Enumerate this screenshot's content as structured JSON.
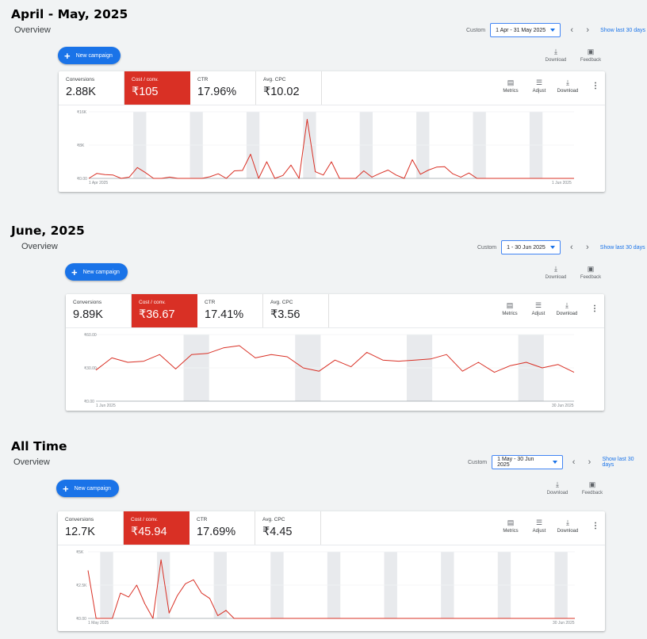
{
  "panels": [
    {
      "title": "April - May, 2025",
      "overview_label": "Overview",
      "range_custom_label": "Custom",
      "range_value": "1 Apr - 31 May 2025",
      "show_last_label": "Show last 30 days",
      "new_campaign_label": "New campaign",
      "download_label": "Download",
      "feedback_label": "Feedback",
      "metrics": [
        {
          "label": "Conversions",
          "value": "2.88K"
        },
        {
          "label": "Cost / conv.",
          "value": "₹105"
        },
        {
          "label": "CTR",
          "value": "17.96%"
        },
        {
          "label": "Avg. CPC",
          "value": "₹10.02"
        }
      ],
      "tools": {
        "metrics": "Metrics",
        "adjust": "Adjust",
        "download": "Download"
      },
      "chart_data": {
        "type": "line",
        "series_color": "#d93025",
        "y_ticks": [
          "₹16K",
          "₹8K",
          "₹0.00"
        ],
        "ylim": [
          0,
          16000
        ],
        "x_start_label": "1 Apr 2025",
        "x_end_label": "1 Jun 2025",
        "weekend_bands": [
          6,
          13,
          20,
          27,
          34,
          41,
          48,
          55
        ],
        "values": [
          0,
          1200,
          900,
          800,
          0,
          300,
          2600,
          1400,
          0,
          0,
          300,
          0,
          0,
          0,
          0,
          400,
          1100,
          0,
          1800,
          1900,
          5800,
          0,
          4000,
          0,
          700,
          3200,
          0,
          14200,
          1600,
          800,
          4000,
          0,
          0,
          0,
          1800,
          300,
          1200,
          2000,
          800,
          0,
          4500,
          1000,
          2000,
          2700,
          2800,
          1100,
          300,
          1300,
          0,
          0,
          0,
          0,
          0,
          0,
          0,
          0,
          0,
          0,
          0,
          0,
          0
        ]
      }
    },
    {
      "title": "June, 2025",
      "overview_label": "Overview",
      "range_custom_label": "Custom",
      "range_value": "1 - 30 Jun 2025",
      "show_last_label": "Show last 30 days",
      "new_campaign_label": "New campaign",
      "download_label": "Download",
      "feedback_label": "Feedback",
      "metrics": [
        {
          "label": "Conversions",
          "value": "9.89K"
        },
        {
          "label": "Cost / conv.",
          "value": "₹36.67"
        },
        {
          "label": "CTR",
          "value": "17.41%"
        },
        {
          "label": "Avg. CPC",
          "value": "₹3.56"
        }
      ],
      "tools": {
        "metrics": "Metrics",
        "adjust": "Adjust",
        "download": "Download"
      },
      "chart_data": {
        "type": "line",
        "series_color": "#d93025",
        "y_ticks": [
          "₹60.00",
          "₹30.00",
          "₹0.00"
        ],
        "ylim": [
          0,
          60
        ],
        "x_start_label": "1 Jun 2025",
        "x_end_label": "30 Jun 2025",
        "weekend_bands": [
          6,
          13,
          20,
          27
        ],
        "values": [
          28,
          39,
          35,
          36,
          42,
          29,
          42,
          43,
          48,
          50,
          39,
          42,
          40,
          30,
          27,
          37,
          31,
          44,
          37,
          36,
          37,
          38,
          42,
          27,
          35,
          26,
          32,
          35,
          30,
          33,
          26
        ]
      }
    },
    {
      "title": "All Time",
      "overview_label": "Overview",
      "range_custom_label": "Custom",
      "range_value": "1 May - 30 Jun 2025",
      "show_last_label": "Show last 30 days",
      "new_campaign_label": "New campaign",
      "download_label": "Download",
      "feedback_label": "Feedback",
      "metrics": [
        {
          "label": "Conversions",
          "value": "12.7K"
        },
        {
          "label": "Cost / conv.",
          "value": "₹45.94"
        },
        {
          "label": "CTR",
          "value": "17.69%"
        },
        {
          "label": "Avg. CPC",
          "value": "₹4.45"
        }
      ],
      "tools": {
        "metrics": "Metrics",
        "adjust": "Adjust",
        "download": "Download"
      },
      "chart_data": {
        "type": "line",
        "series_color": "#d93025",
        "y_ticks": [
          "₹5K",
          "₹2.5K",
          "₹0.00"
        ],
        "ylim": [
          0,
          5000
        ],
        "x_start_label": "1 May 2025",
        "x_end_label": "30 Jun 2025",
        "weekend_bands": [
          2,
          9,
          16,
          23,
          30,
          37,
          44,
          51,
          58
        ],
        "values": [
          3600,
          0,
          0,
          0,
          1900,
          1600,
          2500,
          1100,
          0,
          4400,
          400,
          1700,
          2600,
          2900,
          1900,
          1500,
          200,
          600,
          0,
          0,
          0,
          0,
          0,
          0,
          0,
          0,
          0,
          0,
          0,
          0,
          0,
          0,
          0,
          0,
          0,
          0,
          0,
          0,
          0,
          0,
          0,
          0,
          0,
          0,
          0,
          0,
          0,
          0,
          0,
          0,
          0,
          0,
          0,
          0,
          0,
          0,
          0,
          0,
          0,
          0,
          0
        ]
      }
    }
  ]
}
